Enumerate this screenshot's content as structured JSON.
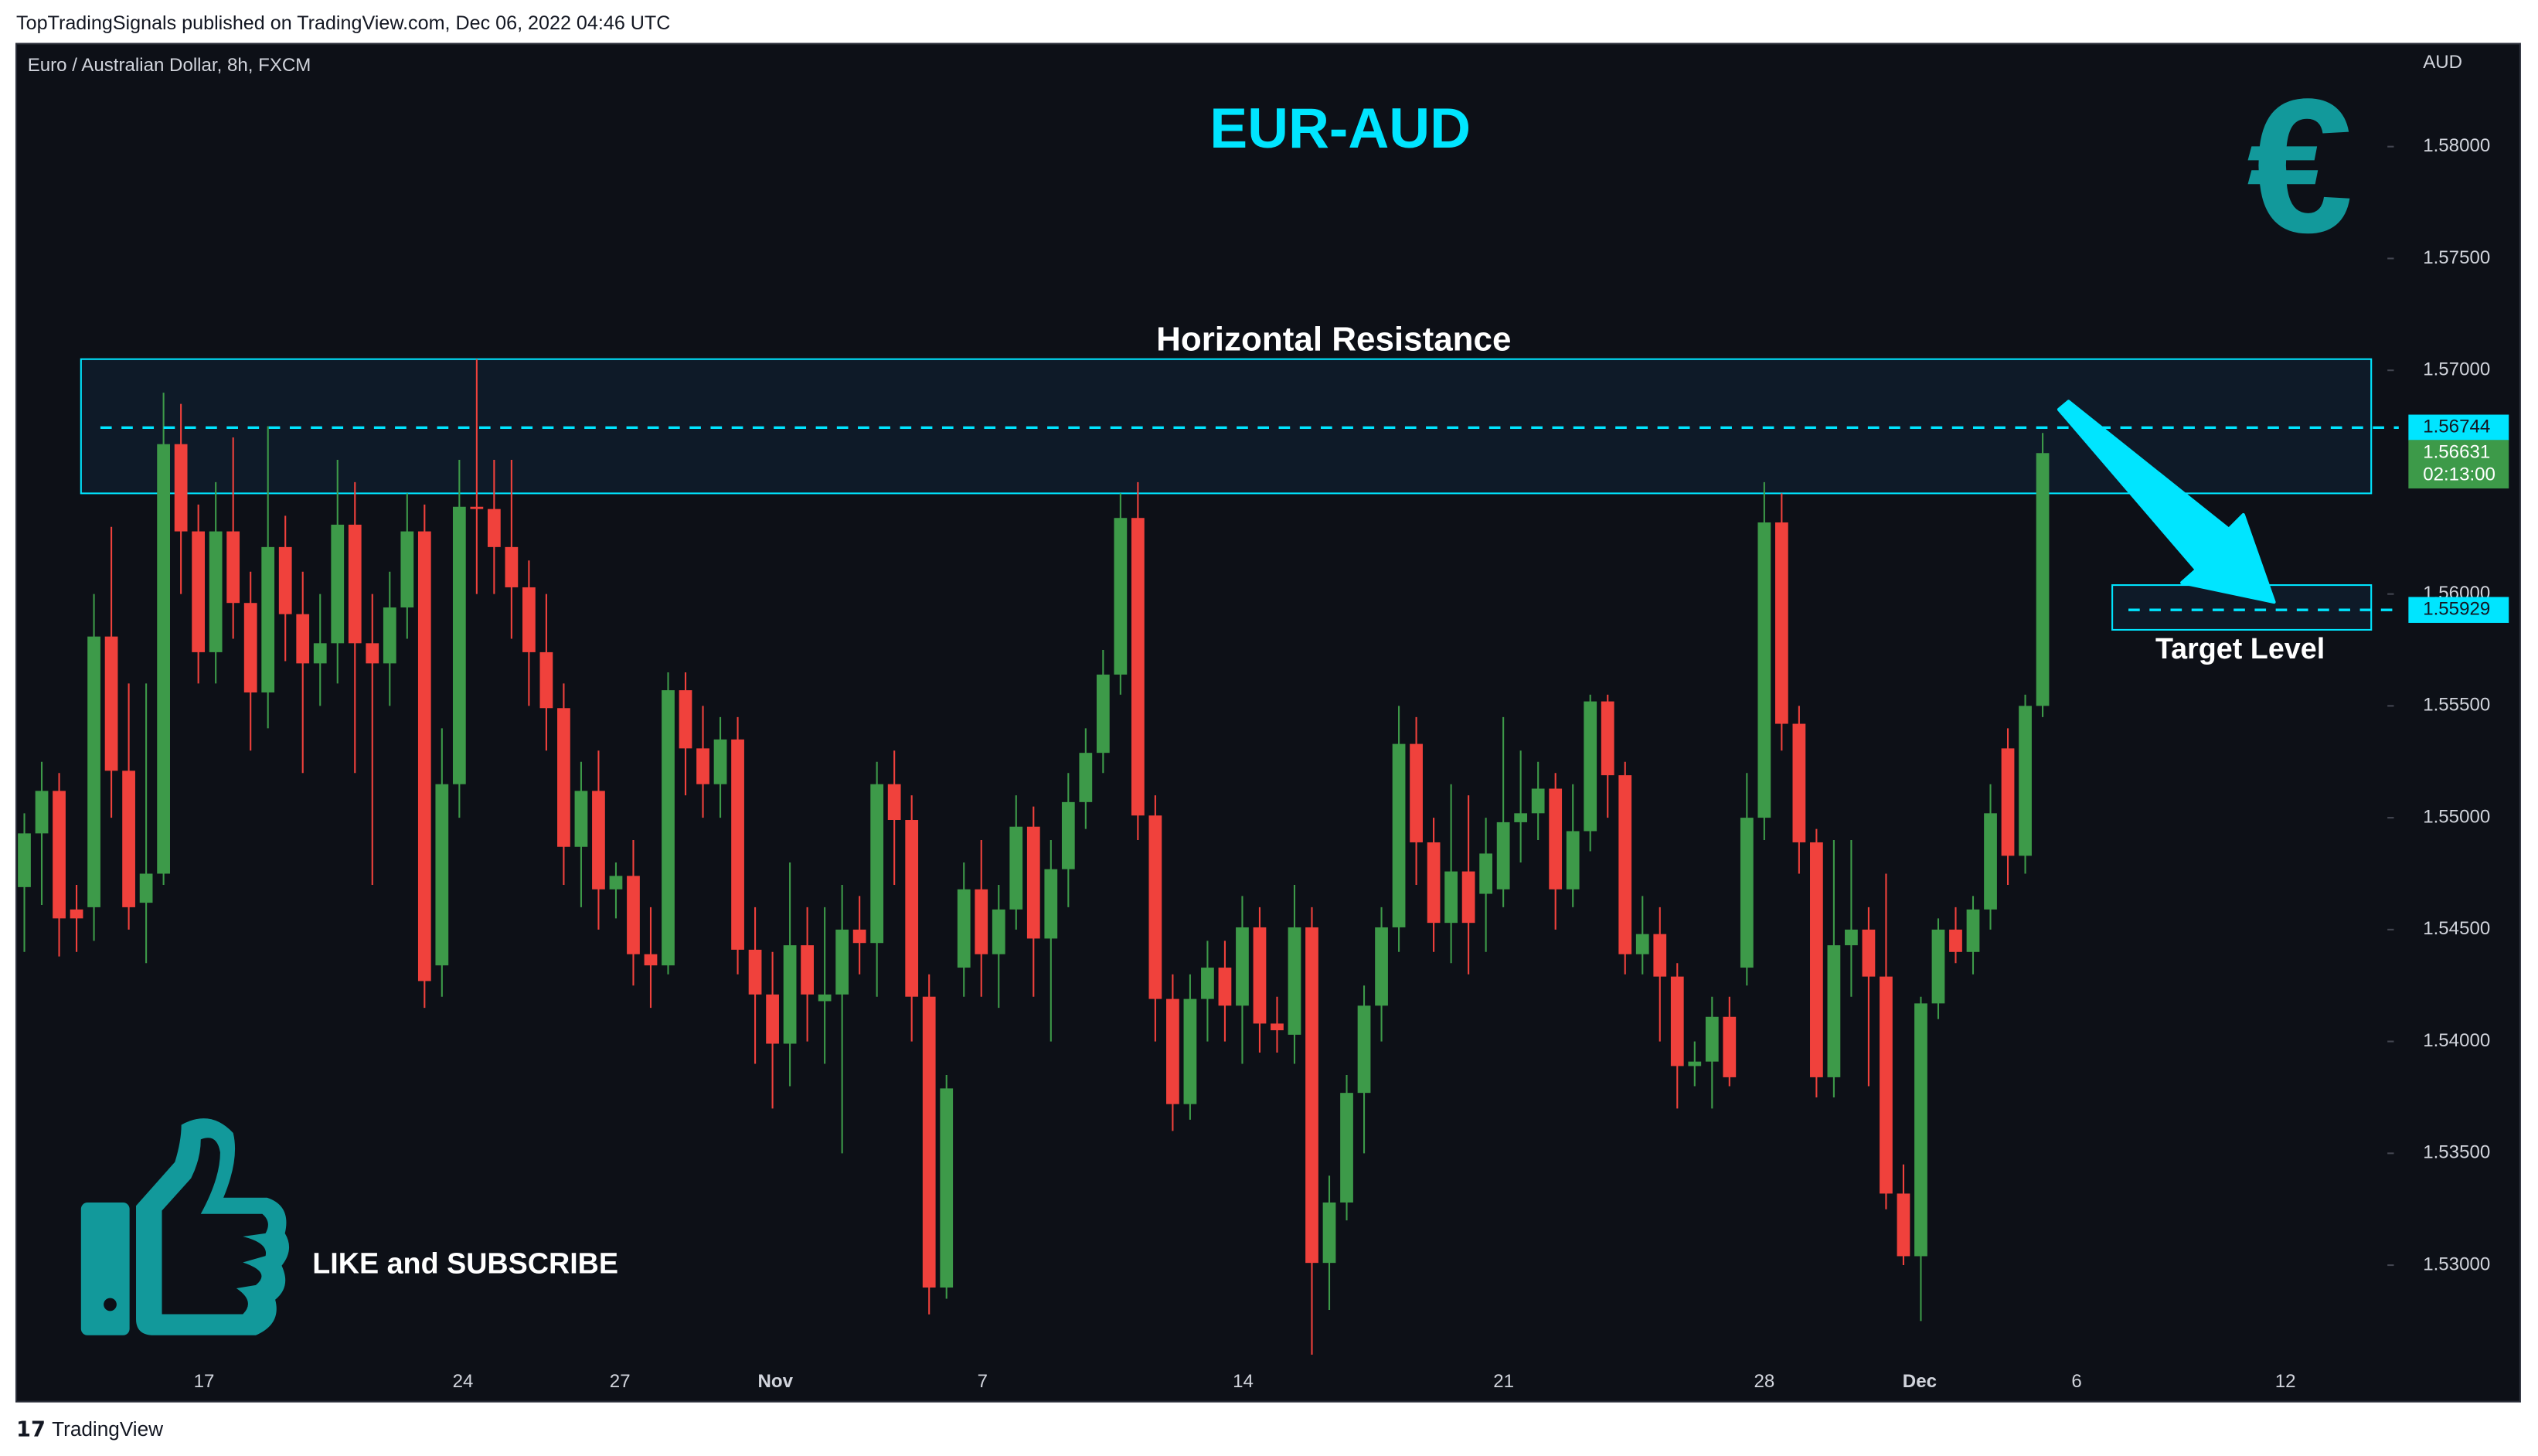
{
  "header": "TopTradingSignals published on TradingView.com, Dec 06, 2022 04:46 UTC",
  "footer": "TradingView",
  "chart_data": {
    "type": "candlestick",
    "symbol": "Euro / Australian Dollar, 8h, FXCM",
    "currency": "AUD",
    "title": "EUR-AUD",
    "currency_symbol": "€",
    "annotations": {
      "resistance": "Horizontal Resistance",
      "target": "Target Level",
      "cta": "LIKE and SUBSCRIBE"
    },
    "up_color": "#3d9a49",
    "down_color": "#f0413c",
    "accent_color": "#00e5ff",
    "ylim": [
      1.5239,
      1.5846
    ],
    "yticks": [
      {
        "value": 1.53,
        "label": "1.53000"
      },
      {
        "value": 1.535,
        "label": "1.53500"
      },
      {
        "value": 1.54,
        "label": "1.54000"
      },
      {
        "value": 1.545,
        "label": "1.54500"
      },
      {
        "value": 1.55,
        "label": "1.55000"
      },
      {
        "value": 1.555,
        "label": "1.55500"
      },
      {
        "value": 1.56,
        "label": "1.56000"
      },
      {
        "value": 1.57,
        "label": "1.57000"
      },
      {
        "value": 1.575,
        "label": "1.57500"
      },
      {
        "value": 1.58,
        "label": "1.58000"
      }
    ],
    "x_labels": [
      "17",
      "24",
      "27",
      "Nov",
      "7",
      "14",
      "21",
      "28",
      "Dec",
      "6",
      "12"
    ],
    "resistance_zone": [
      1.5645,
      1.5705
    ],
    "target_zone": [
      1.5584,
      1.5604
    ],
    "resistance_line": {
      "value": 1.56744,
      "label": "1.56744"
    },
    "target_line": {
      "value": 1.55929,
      "label": "1.55929"
    },
    "last_price": {
      "value": 1.56631,
      "label": "1.56631",
      "countdown": "02:13:00"
    },
    "open": [
      1.5469,
      1.5493,
      1.5512,
      1.5459,
      1.546,
      1.5581,
      1.5521,
      1.5462,
      1.5475,
      1.5667,
      1.5628,
      1.5574,
      1.5628,
      1.5596,
      1.5556,
      1.5621,
      1.5591,
      1.5569,
      1.5578,
      1.5631,
      1.5578,
      1.5569,
      1.5594,
      1.5628,
      1.5434,
      1.5515,
      1.5639,
      1.5638,
      1.5621,
      1.5603,
      1.5574,
      1.5549,
      1.5487,
      1.5512,
      1.5468,
      1.5474,
      1.5439,
      1.5434,
      1.5557,
      1.5531,
      1.5515,
      1.5535,
      1.5441,
      1.5421,
      1.5399,
      1.5443,
      1.5418,
      1.5421,
      1.545,
      1.5444,
      1.5515,
      1.5499,
      1.542,
      1.529,
      1.5433,
      1.5468,
      1.5439,
      1.5459,
      1.5496,
      1.5446,
      1.5477,
      1.5507,
      1.5529,
      1.5564,
      1.5634,
      1.5501,
      1.5419,
      1.5372,
      1.5419,
      1.5433,
      1.5416,
      1.5451,
      1.5408,
      1.5403,
      1.5451,
      1.5301,
      1.5328,
      1.5377,
      1.5416,
      1.5451,
      1.5533,
      1.5489,
      1.5453,
      1.5476,
      1.5466,
      1.5468,
      1.5498,
      1.5502,
      1.5513,
      1.5468,
      1.5494,
      1.5552,
      1.5519,
      1.5439,
      1.5448,
      1.5429,
      1.5389,
      1.5391,
      1.5411,
      1.5433,
      1.55,
      1.5632,
      1.5542,
      1.5489,
      1.5384,
      1.5443,
      1.545,
      1.5429,
      1.5332,
      1.5304,
      1.5417,
      1.545,
      1.544,
      1.5459,
      1.5531,
      1.5483,
      1.555
    ],
    "high": [
      1.5502,
      1.5525,
      1.552,
      1.547,
      1.56,
      1.563,
      1.556,
      1.556,
      1.569,
      1.5685,
      1.564,
      1.565,
      1.567,
      1.561,
      1.5675,
      1.5635,
      1.561,
      1.56,
      1.566,
      1.565,
      1.56,
      1.561,
      1.5645,
      1.564,
      1.554,
      1.566,
      1.5705,
      1.566,
      1.566,
      1.5615,
      1.56,
      1.556,
      1.5525,
      1.553,
      1.548,
      1.549,
      1.546,
      1.5565,
      1.5565,
      1.555,
      1.5545,
      1.5545,
      1.546,
      1.544,
      1.548,
      1.546,
      1.546,
      1.547,
      1.5465,
      1.5525,
      1.553,
      1.551,
      1.543,
      1.5385,
      1.548,
      1.549,
      1.547,
      1.551,
      1.5505,
      1.549,
      1.552,
      1.554,
      1.5575,
      1.5645,
      1.565,
      1.551,
      1.543,
      1.543,
      1.5445,
      1.5445,
      1.5465,
      1.546,
      1.542,
      1.547,
      1.546,
      1.534,
      1.5385,
      1.5425,
      1.546,
      1.555,
      1.5545,
      1.55,
      1.5515,
      1.551,
      1.55,
      1.5545,
      1.553,
      1.5525,
      1.552,
      1.5515,
      1.5555,
      1.5555,
      1.5525,
      1.5465,
      1.546,
      1.5435,
      1.54,
      1.542,
      1.542,
      1.552,
      1.565,
      1.5645,
      1.555,
      1.5495,
      1.549,
      1.549,
      1.546,
      1.5475,
      1.5345,
      1.542,
      1.5455,
      1.546,
      1.5465,
      1.5515,
      1.554,
      1.5555,
      1.5672
    ],
    "low": [
      1.544,
      1.5461,
      1.5438,
      1.544,
      1.5445,
      1.55,
      1.545,
      1.5435,
      1.547,
      1.56,
      1.556,
      1.556,
      1.558,
      1.553,
      1.554,
      1.557,
      1.552,
      1.555,
      1.556,
      1.552,
      1.547,
      1.555,
      1.558,
      1.5415,
      1.542,
      1.55,
      1.56,
      1.56,
      1.558,
      1.555,
      1.553,
      1.547,
      1.546,
      1.545,
      1.5455,
      1.5425,
      1.5415,
      1.543,
      1.551,
      1.55,
      1.55,
      1.543,
      1.539,
      1.537,
      1.538,
      1.54,
      1.539,
      1.535,
      1.543,
      1.542,
      1.547,
      1.54,
      1.5278,
      1.5285,
      1.542,
      1.542,
      1.5415,
      1.545,
      1.542,
      1.54,
      1.546,
      1.5495,
      1.552,
      1.5555,
      1.549,
      1.54,
      1.536,
      1.5365,
      1.54,
      1.54,
      1.539,
      1.5395,
      1.5395,
      1.539,
      1.526,
      1.528,
      1.532,
      1.535,
      1.54,
      1.544,
      1.547,
      1.544,
      1.5435,
      1.543,
      1.544,
      1.546,
      1.548,
      1.549,
      1.545,
      1.546,
      1.5485,
      1.55,
      1.543,
      1.543,
      1.54,
      1.537,
      1.538,
      1.537,
      1.538,
      1.5425,
      1.549,
      1.553,
      1.5475,
      1.5375,
      1.5375,
      1.542,
      1.538,
      1.5325,
      1.53,
      1.5275,
      1.541,
      1.5435,
      1.543,
      1.545,
      1.547,
      1.5475,
      1.5545
    ],
    "close": [
      1.5493,
      1.5512,
      1.5455,
      1.5455,
      1.5581,
      1.5521,
      1.546,
      1.5475,
      1.5667,
      1.5628,
      1.5574,
      1.5628,
      1.5596,
      1.5556,
      1.5621,
      1.5591,
      1.5569,
      1.5578,
      1.5631,
      1.5578,
      1.5569,
      1.5594,
      1.5628,
      1.5427,
      1.5515,
      1.5639,
      1.5638,
      1.5621,
      1.5603,
      1.5574,
      1.5549,
      1.5487,
      1.5512,
      1.5468,
      1.5474,
      1.5439,
      1.5434,
      1.5557,
      1.5531,
      1.5515,
      1.5535,
      1.5441,
      1.5421,
      1.5399,
      1.5443,
      1.5421,
      1.5421,
      1.545,
      1.5444,
      1.5515,
      1.5499,
      1.542,
      1.529,
      1.5379,
      1.5468,
      1.5439,
      1.5459,
      1.5496,
      1.5446,
      1.5477,
      1.5507,
      1.5529,
      1.5564,
      1.5634,
      1.5501,
      1.5419,
      1.5372,
      1.5419,
      1.5433,
      1.5416,
      1.5451,
      1.5408,
      1.5405,
      1.5451,
      1.5301,
      1.5328,
      1.5377,
      1.5416,
      1.5451,
      1.5533,
      1.5489,
      1.5453,
      1.5476,
      1.5453,
      1.5484,
      1.5498,
      1.5502,
      1.5513,
      1.5468,
      1.5494,
      1.5552,
      1.5519,
      1.5439,
      1.5448,
      1.5429,
      1.5389,
      1.5391,
      1.5411,
      1.5384,
      1.55,
      1.5632,
      1.5542,
      1.5489,
      1.5384,
      1.5443,
      1.545,
      1.5429,
      1.5332,
      1.5304,
      1.5417,
      1.545,
      1.544,
      1.5459,
      1.5502,
      1.5483,
      1.555,
      1.5663
    ]
  }
}
